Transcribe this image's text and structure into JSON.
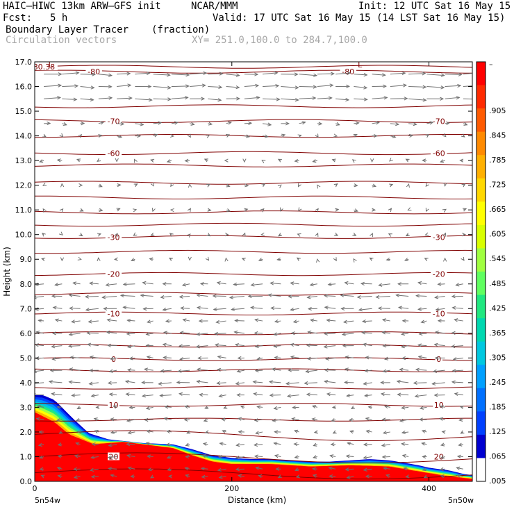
{
  "header": {
    "model": "HAIC—HIWC 13km ARW—GFS init",
    "center": "NCAR/MMM",
    "init": "Init: 12 UTC Sat 16 May 15",
    "fcst_label": "Fcst:",
    "fcst_value": "5 h",
    "valid": "Valid: 17 UTC Sat 16 May 15 (14 LST Sat 16 May 15)",
    "field_name": "Boundary Layer Tracer",
    "field_units": "(fraction)",
    "vector_name": "Circulation vectors",
    "xy_range": "XY= 251.0,100.0 to 284.7,100.0"
  },
  "chart_data": {
    "type": "heatmap",
    "xlabel": "Distance (km)",
    "ylabel": "Height (km)",
    "xlim": [
      0,
      444
    ],
    "ylim": [
      0,
      17
    ],
    "x_ticks": [
      0,
      200,
      400
    ],
    "y_ticks": [
      "0.0",
      "1.0",
      "2.0",
      "3.0",
      "4.0",
      "5.0",
      "6.0",
      "7.0",
      "8.0",
      "9.0",
      "10.0",
      "11.0",
      "12.0",
      "13.0",
      "14.0",
      "15.0",
      "16.0",
      "17.0"
    ],
    "x_endpoint_labels": [
      "5n54w",
      "5n50w"
    ],
    "colorbar": {
      "labels": [
        "–",
        ".905",
        ".845",
        ".785",
        ".725",
        ".665",
        ".605",
        ".545",
        ".485",
        ".425",
        ".365",
        ".305",
        ".245",
        ".185",
        ".125",
        ".065",
        ".005"
      ],
      "colors": [
        "#ff0000",
        "#ff2a00",
        "#ff5a00",
        "#ff8a00",
        "#ffb000",
        "#ffd800",
        "#ffff00",
        "#d8ff00",
        "#a0ff40",
        "#60ff60",
        "#20e880",
        "#00d8b0",
        "#00c8e0",
        "#00a0ff",
        "#0070ff",
        "#0040ff",
        "#0000d0",
        "#ffffff"
      ]
    },
    "tracer_top_km": [
      [
        0,
        3.5
      ],
      [
        8,
        3.5
      ],
      [
        20,
        3.3
      ],
      [
        30,
        2.9
      ],
      [
        40,
        2.5
      ],
      [
        55,
        1.95
      ],
      [
        75,
        1.7
      ],
      [
        110,
        1.55
      ],
      [
        140,
        1.5
      ],
      [
        160,
        1.3
      ],
      [
        180,
        1.05
      ],
      [
        200,
        0.95
      ],
      [
        220,
        0.9
      ],
      [
        240,
        0.9
      ],
      [
        260,
        0.85
      ],
      [
        280,
        0.8
      ],
      [
        300,
        0.8
      ],
      [
        320,
        0.85
      ],
      [
        340,
        0.9
      ],
      [
        360,
        0.85
      ],
      [
        375,
        0.75
      ],
      [
        390,
        0.65
      ],
      [
        400,
        0.55
      ],
      [
        420,
        0.45
      ],
      [
        435,
        0.3
      ],
      [
        444,
        0.25
      ]
    ],
    "tracer_core_top_km": [
      [
        0,
        2.8
      ],
      [
        20,
        2.4
      ],
      [
        35,
        1.9
      ],
      [
        60,
        1.5
      ],
      [
        90,
        1.6
      ],
      [
        120,
        1.45
      ],
      [
        140,
        1.35
      ],
      [
        160,
        1.05
      ],
      [
        180,
        0.8
      ],
      [
        200,
        0.7
      ],
      [
        240,
        0.7
      ],
      [
        280,
        0.6
      ],
      [
        320,
        0.65
      ],
      [
        360,
        0.6
      ],
      [
        390,
        0.4
      ],
      [
        420,
        0.2
      ],
      [
        444,
        0.1
      ]
    ],
    "contours": {
      "field": "temperature (C)",
      "levels": [
        {
          "value": "-80.38",
          "height_km": 16.8
        },
        {
          "value": "-80",
          "height_km": 16.6
        },
        {
          "value": "-70",
          "height_km": 14.6
        },
        {
          "value": "-60",
          "height_km": 13.3
        },
        {
          "value": "-30",
          "height_km": 9.9
        },
        {
          "value": "-20",
          "height_km": 8.4
        },
        {
          "value": "-10",
          "height_km": 6.8
        },
        {
          "value": "0",
          "height_km": 4.95
        },
        {
          "value": "10",
          "height_km": 3.1
        },
        {
          "value": "20",
          "height_km": 1.0
        }
      ],
      "unlabeled_heights_km": [
        15.2,
        14.0,
        12.8,
        12.1,
        11.5,
        10.9,
        10.4,
        9.3,
        7.6,
        6.0,
        5.5,
        4.5,
        3.8,
        2.5,
        1.9,
        0.35
      ],
      "low_markers": [
        {
          "text": "L",
          "x_km": 16,
          "height_km": 17.0
        },
        {
          "text": "L",
          "x_km": 330,
          "height_km": 17.0
        }
      ]
    },
    "vectors": {
      "description": "Circulation vectors",
      "layers": [
        {
          "height_km": 16.5,
          "u": 1.0
        },
        {
          "height_km": 16.0,
          "u": 1.0
        },
        {
          "height_km": 15.5,
          "u": 1.0
        },
        {
          "height_km": 14.5,
          "u": 0.4
        },
        {
          "height_km": 14.0,
          "u": 0.2
        },
        {
          "height_km": 13.0,
          "u": -0.15
        },
        {
          "height_km": 12.0,
          "u": 0.1
        },
        {
          "height_km": 11.0,
          "u": 0.1
        },
        {
          "height_km": 10.0,
          "u": 0.0
        },
        {
          "height_km": 9.0,
          "u": -0.1
        },
        {
          "height_km": 8.0,
          "u": -0.6
        },
        {
          "height_km": 7.5,
          "u": -0.8
        },
        {
          "height_km": 7.0,
          "u": -0.7
        },
        {
          "height_km": 6.5,
          "u": -0.5
        },
        {
          "height_km": 6.0,
          "u": -0.6
        },
        {
          "height_km": 5.5,
          "u": -0.6
        },
        {
          "height_km": 5.0,
          "u": -0.5
        },
        {
          "height_km": 4.5,
          "u": -0.6
        },
        {
          "height_km": 4.0,
          "u": -0.7
        },
        {
          "height_km": 3.5,
          "u": -0.6
        },
        {
          "height_km": 3.0,
          "u": -0.3
        },
        {
          "height_km": 2.5,
          "u": -0.4
        },
        {
          "height_km": 2.0,
          "u": -0.3
        },
        {
          "height_km": 1.5,
          "u": -0.4
        },
        {
          "height_km": 1.0,
          "u": -0.4
        },
        {
          "height_km": 0.5,
          "u": -0.4
        },
        {
          "height_km": 0.2,
          "u": -0.3
        }
      ]
    }
  }
}
